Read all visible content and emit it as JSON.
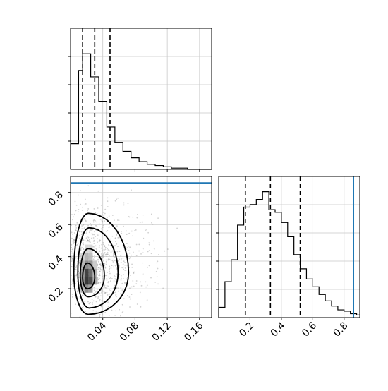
{
  "chart_data": [
    {
      "type": "histogram",
      "panel": "marginal-x",
      "xlim": [
        0.0,
        0.175
      ],
      "bins": [
        0.0,
        0.005,
        0.01,
        0.015,
        0.02,
        0.025,
        0.03,
        0.035,
        0.04,
        0.045,
        0.05,
        0.055,
        0.06,
        0.065,
        0.07,
        0.075,
        0.08,
        0.085,
        0.09,
        0.095,
        0.1,
        0.105,
        0.11,
        0.115,
        0.12,
        0.125,
        0.13,
        0.135,
        0.14,
        0.145,
        0.15,
        0.155,
        0.16,
        0.165,
        0.17,
        0.175
      ],
      "counts": [
        0.2,
        0.2,
        0.77,
        0.9,
        0.9,
        0.72,
        0.72,
        0.53,
        0.53,
        0.33,
        0.33,
        0.21,
        0.21,
        0.14,
        0.14,
        0.09,
        0.09,
        0.06,
        0.06,
        0.04,
        0.04,
        0.03,
        0.03,
        0.02,
        0.02,
        0.01,
        0.01,
        0.01,
        0.01,
        0.0,
        0.0,
        0.0,
        0.0,
        0.0,
        0.0
      ],
      "quantile_lines": [
        0.015,
        0.03,
        0.049
      ],
      "xticks": [
        "0.04",
        "0.08",
        "0.12",
        "0.16"
      ]
    },
    {
      "type": "contour-2d-histogram",
      "panel": "joint",
      "xlim": [
        0.0,
        0.175
      ],
      "ylim": [
        0.02,
        0.9
      ],
      "xticks": [
        "0.04",
        "0.08",
        "0.12",
        "0.16"
      ],
      "yticks": [
        "0.2",
        "0.4",
        "0.6",
        "0.8"
      ],
      "truth_y": 0.86,
      "truth_color": "#1f77b4"
    },
    {
      "type": "histogram",
      "panel": "marginal-y",
      "xlim": [
        0.0,
        0.9
      ],
      "bins": [
        0.0,
        0.04,
        0.08,
        0.12,
        0.16,
        0.2,
        0.24,
        0.28,
        0.32,
        0.36,
        0.4,
        0.44,
        0.48,
        0.52,
        0.56,
        0.6,
        0.64,
        0.68,
        0.72,
        0.76,
        0.8,
        0.84,
        0.88,
        0.9
      ],
      "counts": [
        0.08,
        0.28,
        0.45,
        0.72,
        0.86,
        0.88,
        0.92,
        0.98,
        0.84,
        0.82,
        0.74,
        0.63,
        0.49,
        0.38,
        0.3,
        0.24,
        0.18,
        0.13,
        0.09,
        0.06,
        0.05,
        0.03,
        0.02
      ],
      "quantile_lines": [
        0.17,
        0.33,
        0.52
      ],
      "xticks": [
        "0.2",
        "0.4",
        "0.6",
        "0.8"
      ],
      "truth_x": 0.86,
      "truth_color": "#1f77b4"
    }
  ]
}
